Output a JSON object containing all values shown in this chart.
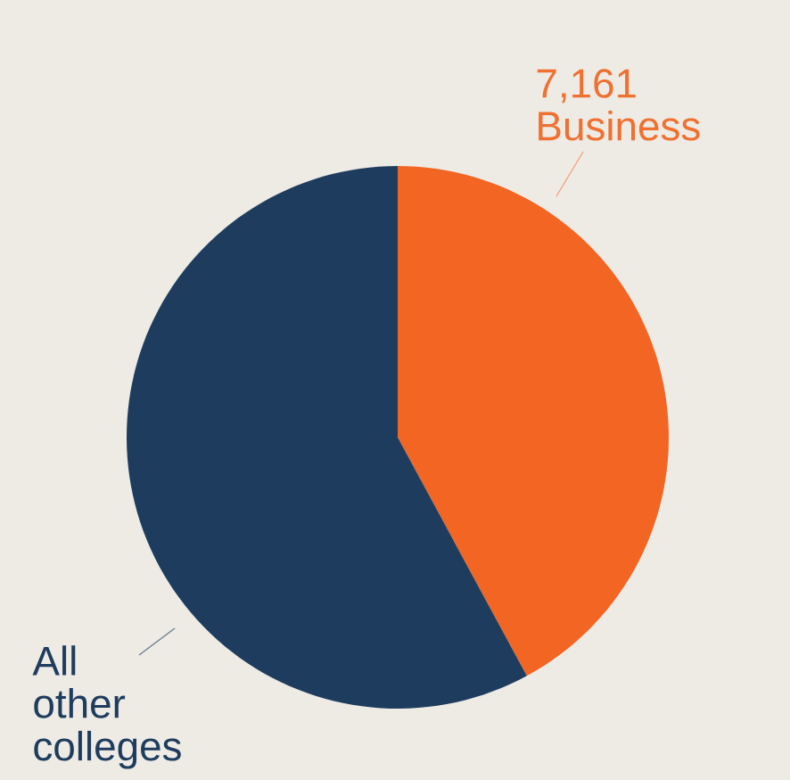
{
  "chart_data": {
    "type": "pie",
    "categories": [
      "Business",
      "All other colleges"
    ],
    "values": [
      7161,
      9850
    ],
    "value_labels": [
      "7,161",
      null
    ],
    "colors": [
      "#f26522",
      "#1e3d5e"
    ]
  }
}
